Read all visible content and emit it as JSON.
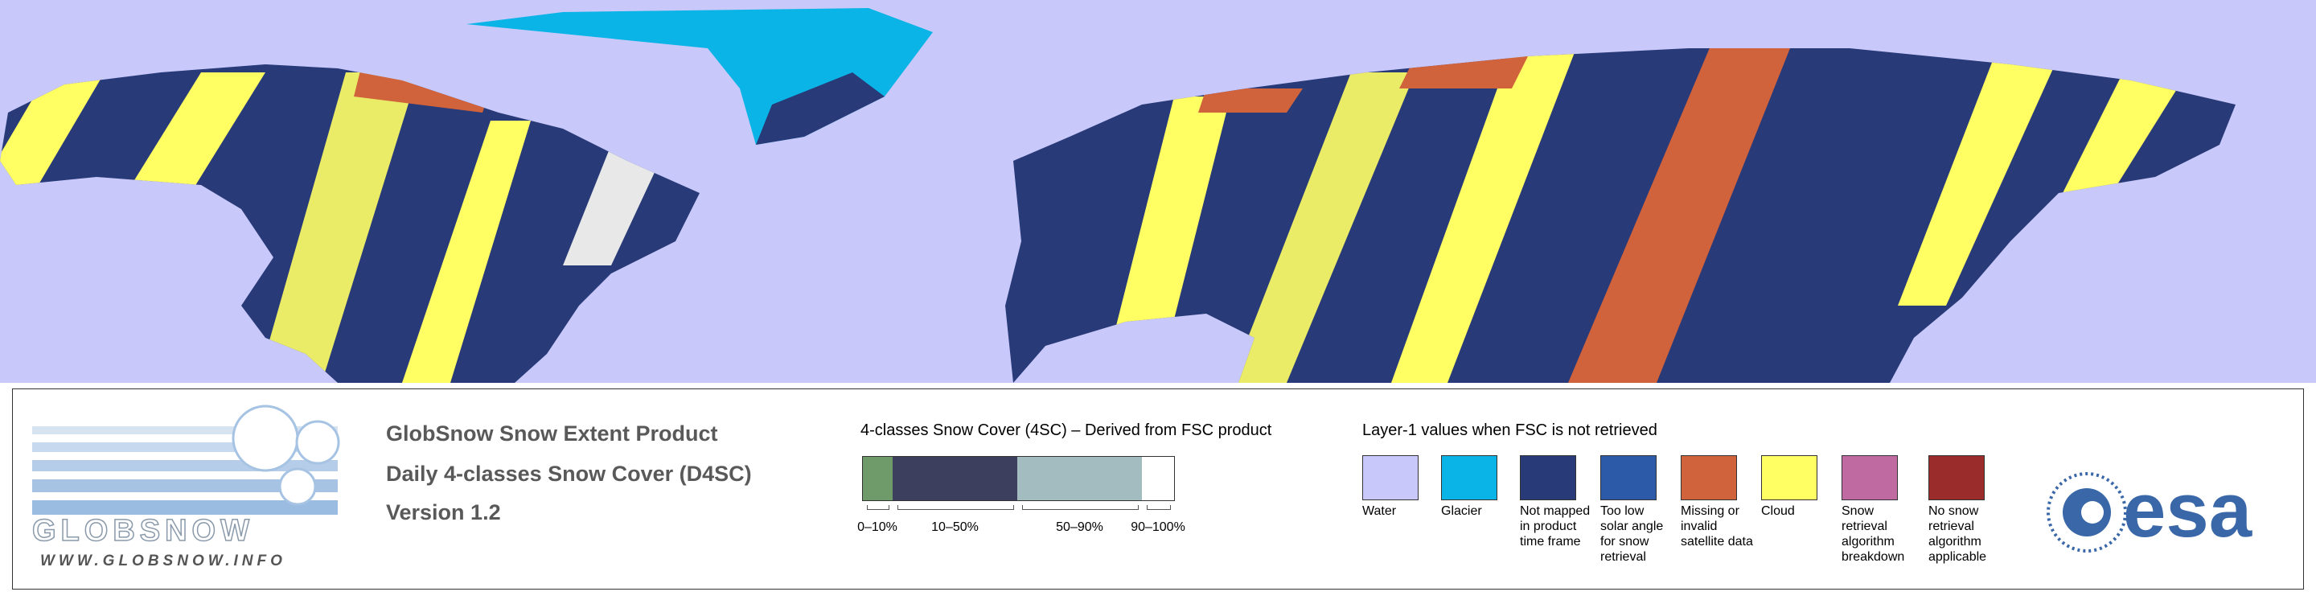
{
  "logo": {
    "name": "GLOBSNOW",
    "url": "WWW.GLOBSNOW.INFO"
  },
  "header": {
    "title": "GlobSnow Snow Extent Product",
    "subtitle": "Daily 4-classes Snow Cover (D4SC)",
    "version": "Version 1.2"
  },
  "snow_cover_legend": {
    "title": "4-classes Snow Cover (4SC) – Derived from FSC product",
    "classes": [
      {
        "label": "0–10%",
        "color": "#6f9a6a"
      },
      {
        "label": "10–50%",
        "color": "#3d3f5f"
      },
      {
        "label": "50–90%",
        "color": "#a3bcc0"
      },
      {
        "label": "90–100%",
        "color": "#ffffff"
      }
    ]
  },
  "layer1_legend": {
    "title": "Layer-1 values when FSC is not retrieved",
    "items": [
      {
        "label": "Water",
        "color": "#c8c8fa"
      },
      {
        "label": "Glacier",
        "color": "#0ab4e6"
      },
      {
        "label": "Not mapped in product time frame",
        "color": "#283a78"
      },
      {
        "label": "Too low solar angle for snow retrieval",
        "color": "#2c5aa8"
      },
      {
        "label": "Missing or invalid satellite data",
        "color": "#d0623c"
      },
      {
        "label": "Cloud",
        "color": "#ffff64"
      },
      {
        "label": "Snow retrieval algorithm breakdown",
        "color": "#c06aa2"
      },
      {
        "label": "No snow retrieval algorithm applicable",
        "color": "#9a2c2c"
      }
    ]
  },
  "esa": {
    "name": "esa"
  }
}
